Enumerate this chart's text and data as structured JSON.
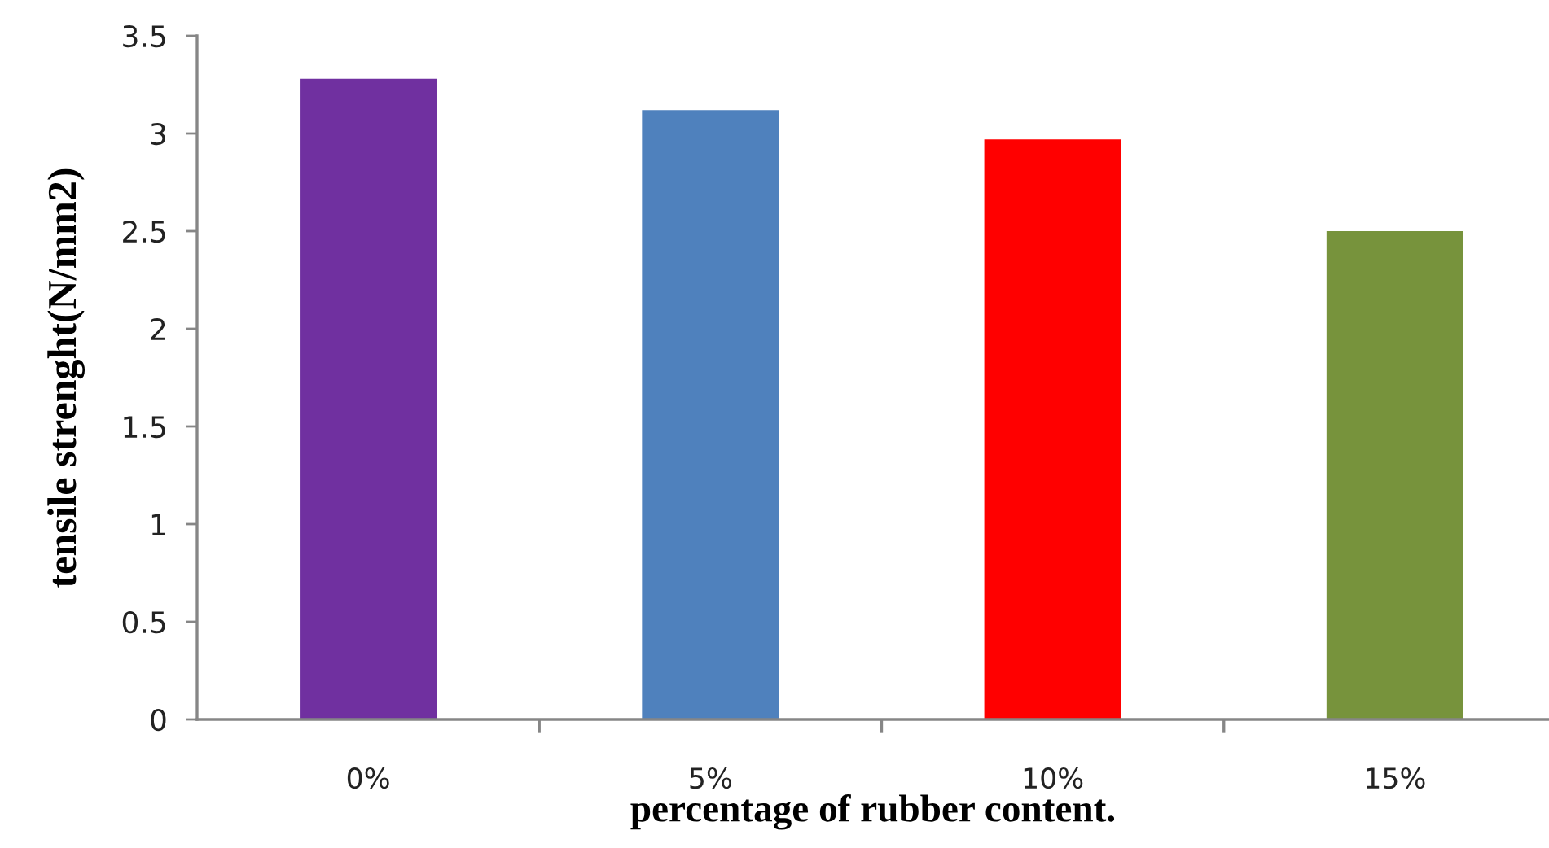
{
  "chart_data": {
    "type": "bar",
    "categories": [
      "0%",
      "5%",
      "10%",
      "15%"
    ],
    "values": [
      3.28,
      3.12,
      2.97,
      2.5
    ],
    "colors": [
      "#7030a0",
      "#4f81bd",
      "#ff0000",
      "#77933c"
    ],
    "xlabel": "percentage of rubber content.",
    "ylabel": "tensile strenght(N/mm2)",
    "ylim": [
      0,
      3.5
    ],
    "yticks": [
      0,
      0.5,
      1,
      1.5,
      2,
      2.5,
      3,
      3.5
    ],
    "grid": false,
    "legend": false
  }
}
